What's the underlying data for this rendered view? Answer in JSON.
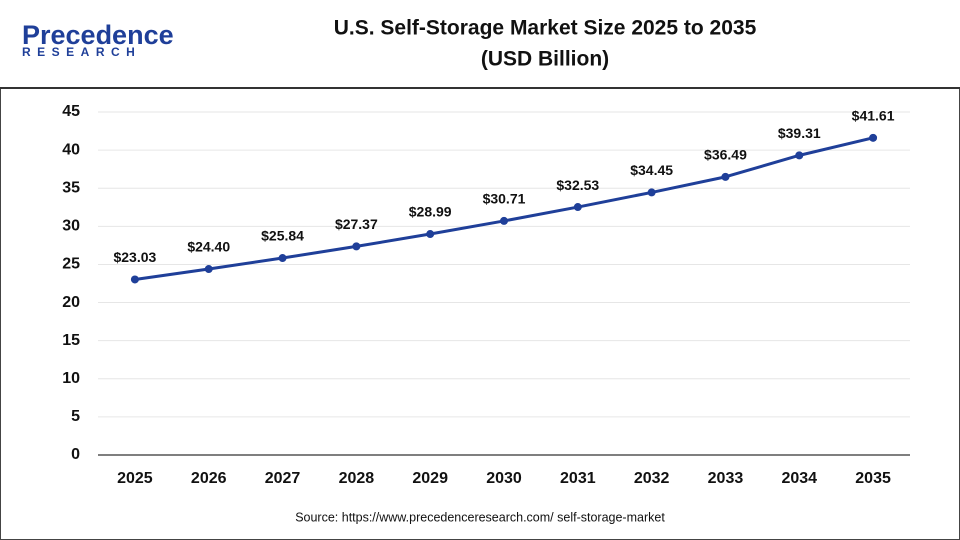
{
  "chart_data": {
    "type": "line",
    "logo": {
      "name": "Precedence",
      "tagline": "RESEARCH"
    },
    "title": "U.S. Self-Storage Market Size 2025 to 2035",
    "subtitle": "(USD Billion)",
    "categories": [
      "2025",
      "2026",
      "2027",
      "2028",
      "2029",
      "2030",
      "2031",
      "2032",
      "2033",
      "2034",
      "2035"
    ],
    "values": [
      23.03,
      24.4,
      25.84,
      27.37,
      28.99,
      30.71,
      32.53,
      34.45,
      36.49,
      39.31,
      41.61
    ],
    "value_labels": [
      "$23.03",
      "$24.40",
      "$25.84",
      "$27.37",
      "$28.99",
      "$30.71",
      "$32.53",
      "$34.45",
      "$36.49",
      "$39.31",
      "$41.61"
    ],
    "color": "#1f3f99",
    "ylim": [
      0,
      45
    ],
    "yticks": [
      0,
      5,
      10,
      15,
      20,
      25,
      30,
      35,
      40,
      45
    ],
    "grid": true,
    "source": "Source: https://www.precedenceresearch.com/ self-storage-market"
  }
}
